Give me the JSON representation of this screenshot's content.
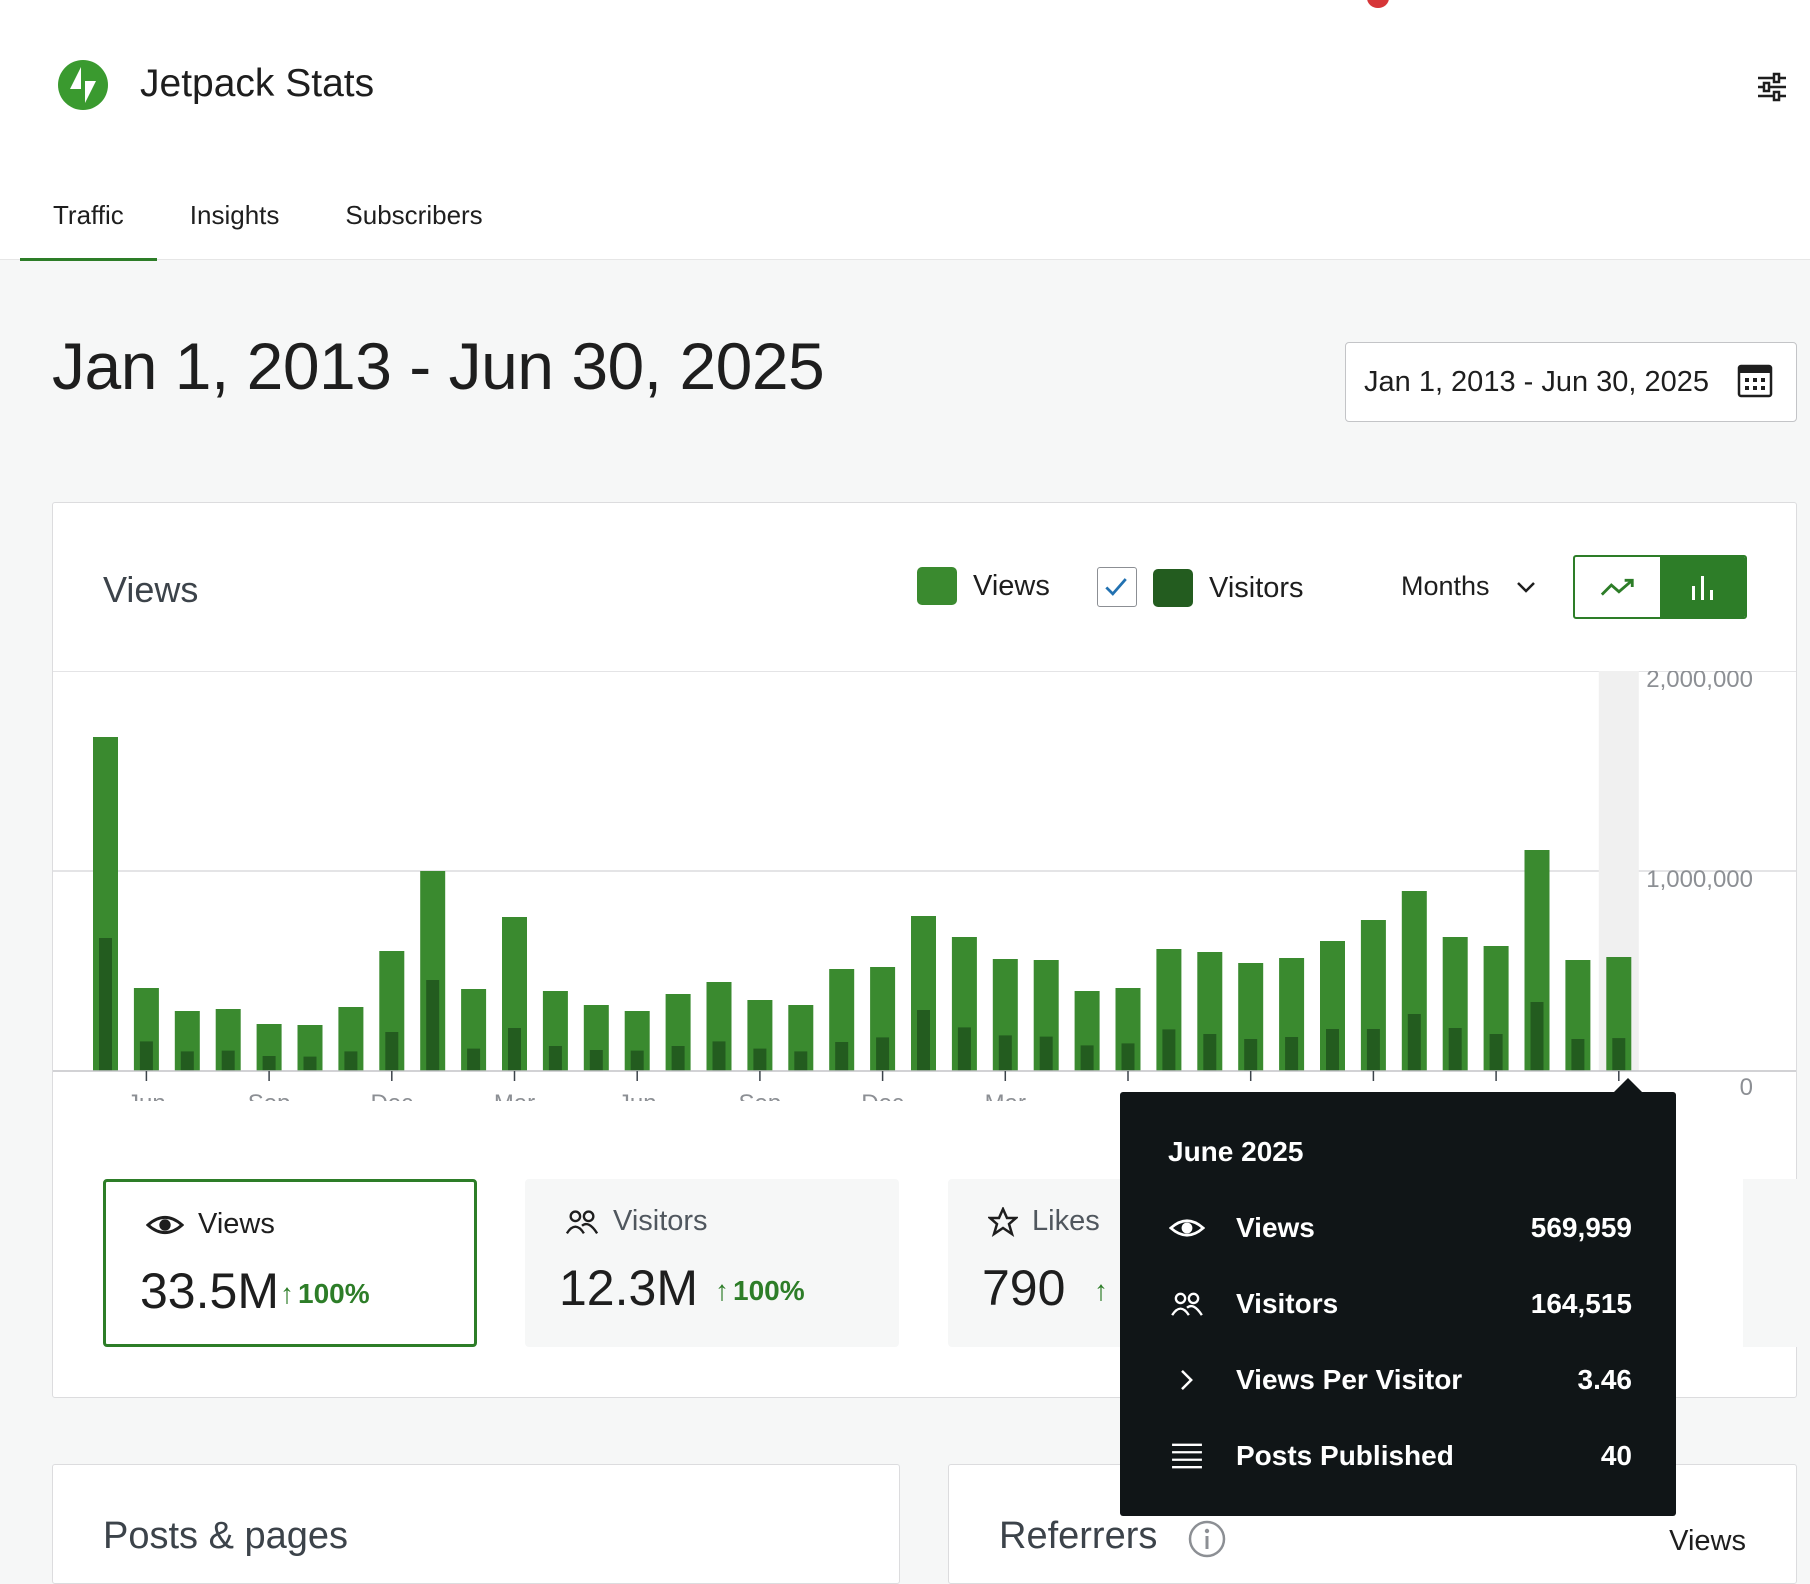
{
  "app": {
    "title": "Jetpack Stats",
    "brand_color": "#2d7d28"
  },
  "tabs": [
    {
      "label": "Traffic",
      "active": true
    },
    {
      "label": "Insights",
      "active": false
    },
    {
      "label": "Subscribers",
      "active": false
    }
  ],
  "page": {
    "title": "Jan 1, 2013 - Jun 30, 2025",
    "date_picker_label": "Jan 1, 2013 - Jun 30, 2025"
  },
  "views_card": {
    "title": "Views",
    "legend": {
      "views": "Views",
      "visitors": "Visitors",
      "visitors_checked": true
    },
    "period": "Months",
    "chart_toggle": {
      "line": "line-chart-icon",
      "bar": "bar-chart-icon",
      "selected": "bar"
    }
  },
  "chart_data": {
    "type": "bar",
    "series": [
      {
        "name": "Views",
        "color": "#3a8a2f",
        "values": [
          1670000,
          415000,
          300000,
          310000,
          235000,
          230000,
          320000,
          600000,
          1000000,
          410000,
          770000,
          400000,
          330000,
          300000,
          385000,
          445000,
          355000,
          330000,
          510000,
          520000,
          775000,
          670000,
          560000,
          555000,
          400000,
          415000,
          610000,
          595000,
          540000,
          565000,
          650000,
          755000,
          900000,
          670000,
          625000,
          1105000,
          555000,
          569959
        ]
      },
      {
        "name": "Visitors",
        "color": "#235c1f",
        "values": [
          665000,
          148000,
          98000,
          102000,
          75000,
          72000,
          98000,
          195000,
          455000,
          112000,
          215000,
          125000,
          105000,
          102000,
          125000,
          148000,
          112000,
          98000,
          145000,
          168000,
          305000,
          218000,
          178000,
          172000,
          128000,
          138000,
          208000,
          185000,
          160000,
          170000,
          210000,
          210000,
          285000,
          215000,
          185000,
          345000,
          160000,
          164515
        ]
      }
    ],
    "x_tick_labels": [
      "Jun",
      "Sep",
      "Dec",
      "Mar",
      "Jun",
      "Sep",
      "Dec",
      "Mar"
    ],
    "y_tick_labels": [
      "2,000,000",
      "1,000,000",
      "0"
    ],
    "ylim": [
      0,
      2000000
    ],
    "highlighted_index": 37,
    "grid": true
  },
  "stats": [
    {
      "label": "Views",
      "icon": "eye-icon",
      "value": "33.5M",
      "change": "100%",
      "selected": true
    },
    {
      "label": "Visitors",
      "icon": "people-icon",
      "value": "12.3M",
      "change": "100%",
      "selected": false
    },
    {
      "label": "Likes",
      "icon": "star-icon",
      "value": "790",
      "change": "",
      "selected": false
    }
  ],
  "tooltip": {
    "title": "June 2025",
    "rows": [
      {
        "icon": "eye-icon",
        "label": "Views",
        "value": "569,959"
      },
      {
        "icon": "people-icon",
        "label": "Visitors",
        "value": "164,515"
      },
      {
        "icon": "chevron-right-icon",
        "label": "Views Per Visitor",
        "value": "3.46"
      },
      {
        "icon": "list-icon",
        "label": "Posts Published",
        "value": "40"
      }
    ]
  },
  "bottom_cards": {
    "posts_title": "Posts & pages",
    "referrers_title": "Referrers",
    "referrers_column": "Views"
  }
}
